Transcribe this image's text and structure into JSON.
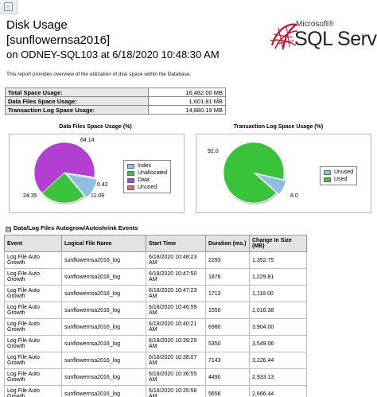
{
  "report": {
    "title": "Disk Usage",
    "database": "[sunflowernsa2016]",
    "server_line": "on ODNEY-SQL103 at 6/18/2020 10:48:30 AM",
    "description": "This report provides overview of the utilization of disk space within the Database."
  },
  "logo": {
    "microsoft": "Microsoft®",
    "product": "SQL Server"
  },
  "summary": [
    {
      "label": "Total Space Usage:",
      "value": "16,482.00 MB"
    },
    {
      "label": "Data Files Space Usage:",
      "value": "1,601.81 MB"
    },
    {
      "label": "Transaction Log Space Usage:",
      "value": "14,880.19 MB"
    }
  ],
  "chart_data": [
    {
      "type": "pie",
      "title": "Data Files Space Usage (%)",
      "categories": [
        "Index",
        "Unallocated",
        "Data",
        "Unused"
      ],
      "values": [
        11.09,
        24.35,
        64.14,
        0.42
      ],
      "labels": [
        "11.09",
        "24.35",
        "64.14",
        "0.42"
      ],
      "colors": [
        "#8fbfe0",
        "#38c33a",
        "#b23fd0",
        "#e06870"
      ],
      "legend": [
        "Index",
        "Unallocated",
        "Data",
        "Unused"
      ],
      "legend_position": "right"
    },
    {
      "type": "pie",
      "title": "Transaction Log Space Usage (%)",
      "categories": [
        "Unused",
        "Used"
      ],
      "values": [
        8.0,
        92.0
      ],
      "labels": [
        "8.0",
        "92.0"
      ],
      "colors": [
        "#8fbfe0",
        "#38c33a"
      ],
      "legend": [
        "Unused",
        "Used"
      ],
      "legend_position": "right"
    }
  ],
  "events_section": {
    "title": "Data/Log Files Autogrow/Autoshrink Events",
    "expander": "⊟",
    "columns": [
      "Event",
      "Logical File Name",
      "Start Time",
      "Duration (ms.)",
      "Change In Size (MB)"
    ],
    "rows": [
      [
        "Log File Auto Growth",
        "sunflowernsa2016_log",
        "6/18/2020 10:48:23 AM",
        "2293",
        "1,352.75"
      ],
      [
        "Log File Auto Growth",
        "sunflowernsa2016_log",
        "6/18/2020 10:47:50 AM",
        "1876",
        "1,229.81"
      ],
      [
        "Log File Auto Growth",
        "sunflowernsa2016_log",
        "6/18/2020 10:47:23 AM",
        "1713",
        "1,118.00"
      ],
      [
        "Log File Auto Growth",
        "sunflowernsa2016_log",
        "6/18/2020 10:46:59 AM",
        "1550",
        "1,016.38"
      ],
      [
        "Log File Auto Growth",
        "sunflowernsa2016_log",
        "6/18/2020 10:40:21 AM",
        "6980",
        "3,904.00"
      ],
      [
        "Log File Auto Growth",
        "sunflowernsa2016_log",
        "6/18/2020 10:39:29 AM",
        "5350",
        "3,549.06"
      ],
      [
        "Log File Auto Growth",
        "sunflowernsa2016_log",
        "6/18/2020 10:38:07 AM",
        "7143",
        "3,226.44"
      ],
      [
        "Log File Auto Growth",
        "sunflowernsa2016_log",
        "6/18/2020 10:36:55 AM",
        "4490",
        "2,933.13"
      ],
      [
        "Log File Auto Growth",
        "sunflowernsa2016_log",
        "6/18/2020 10:35:58 AM",
        "5656",
        "2,666.44"
      ]
    ]
  }
}
